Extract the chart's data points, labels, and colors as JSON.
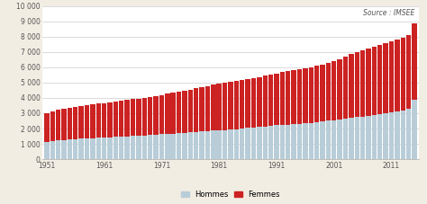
{
  "years": [
    1951,
    1952,
    1953,
    1954,
    1955,
    1956,
    1957,
    1958,
    1959,
    1960,
    1961,
    1962,
    1963,
    1964,
    1965,
    1966,
    1967,
    1968,
    1969,
    1970,
    1971,
    1972,
    1973,
    1974,
    1975,
    1976,
    1977,
    1978,
    1979,
    1980,
    1981,
    1982,
    1983,
    1984,
    1985,
    1986,
    1987,
    1988,
    1989,
    1990,
    1991,
    1992,
    1993,
    1994,
    1995,
    1996,
    1997,
    1998,
    1999,
    2000,
    2001,
    2002,
    2003,
    2004,
    2005,
    2006,
    2007,
    2008,
    2009,
    2010,
    2011,
    2012,
    2013,
    2014,
    2015
  ],
  "hommes": [
    1100,
    1170,
    1210,
    1260,
    1290,
    1310,
    1340,
    1360,
    1380,
    1400,
    1420,
    1440,
    1460,
    1480,
    1500,
    1520,
    1540,
    1560,
    1580,
    1600,
    1620,
    1650,
    1670,
    1700,
    1720,
    1750,
    1770,
    1800,
    1830,
    1860,
    1880,
    1910,
    1940,
    1970,
    2000,
    2030,
    2070,
    2100,
    2140,
    2180,
    2210,
    2240,
    2260,
    2290,
    2320,
    2350,
    2380,
    2420,
    2460,
    2500,
    2540,
    2590,
    2640,
    2690,
    2740,
    2780,
    2820,
    2880,
    2920,
    3000,
    3060,
    3120,
    3180,
    3280,
    3900
  ],
  "femmes": [
    1900,
    1970,
    2030,
    2060,
    2080,
    2100,
    2130,
    2160,
    2190,
    2220,
    2250,
    2280,
    2310,
    2330,
    2360,
    2390,
    2420,
    2460,
    2500,
    2540,
    2580,
    2620,
    2670,
    2710,
    2760,
    2800,
    2850,
    2900,
    2950,
    3000,
    3050,
    3080,
    3100,
    3130,
    3160,
    3200,
    3230,
    3270,
    3310,
    3350,
    3400,
    3440,
    3480,
    3510,
    3550,
    3580,
    3630,
    3680,
    3740,
    3800,
    3870,
    3960,
    4060,
    4160,
    4260,
    4310,
    4400,
    4490,
    4540,
    4580,
    4620,
    4670,
    4750,
    4830,
    5000
  ],
  "color_hommes": "#b8cdd8",
  "color_femmes": "#cc2222",
  "bar_edge_color": "none",
  "bar_linewidth": 0.0,
  "yticks": [
    0,
    1000,
    2000,
    3000,
    4000,
    5000,
    6000,
    7000,
    8000,
    9000,
    10000
  ],
  "ytick_labels": [
    "0",
    "1 000",
    "2 000",
    "3 000",
    "4 000",
    "5 000",
    "6 000",
    "7 000",
    "8 000",
    "9 000",
    "10 000"
  ],
  "xtick_labels": [
    "1951",
    "1961",
    "1971",
    "1981",
    "1991",
    "2001",
    "2011"
  ],
  "xtick_positions": [
    1951,
    1961,
    1971,
    1981,
    1991,
    2001,
    2011
  ],
  "source_text": "Source : IMSEE",
  "legend_hommes": "Hommes",
  "legend_femmes": "Femmes",
  "bg_color": "#f2ede3",
  "plot_bg_color": "#ffffff"
}
